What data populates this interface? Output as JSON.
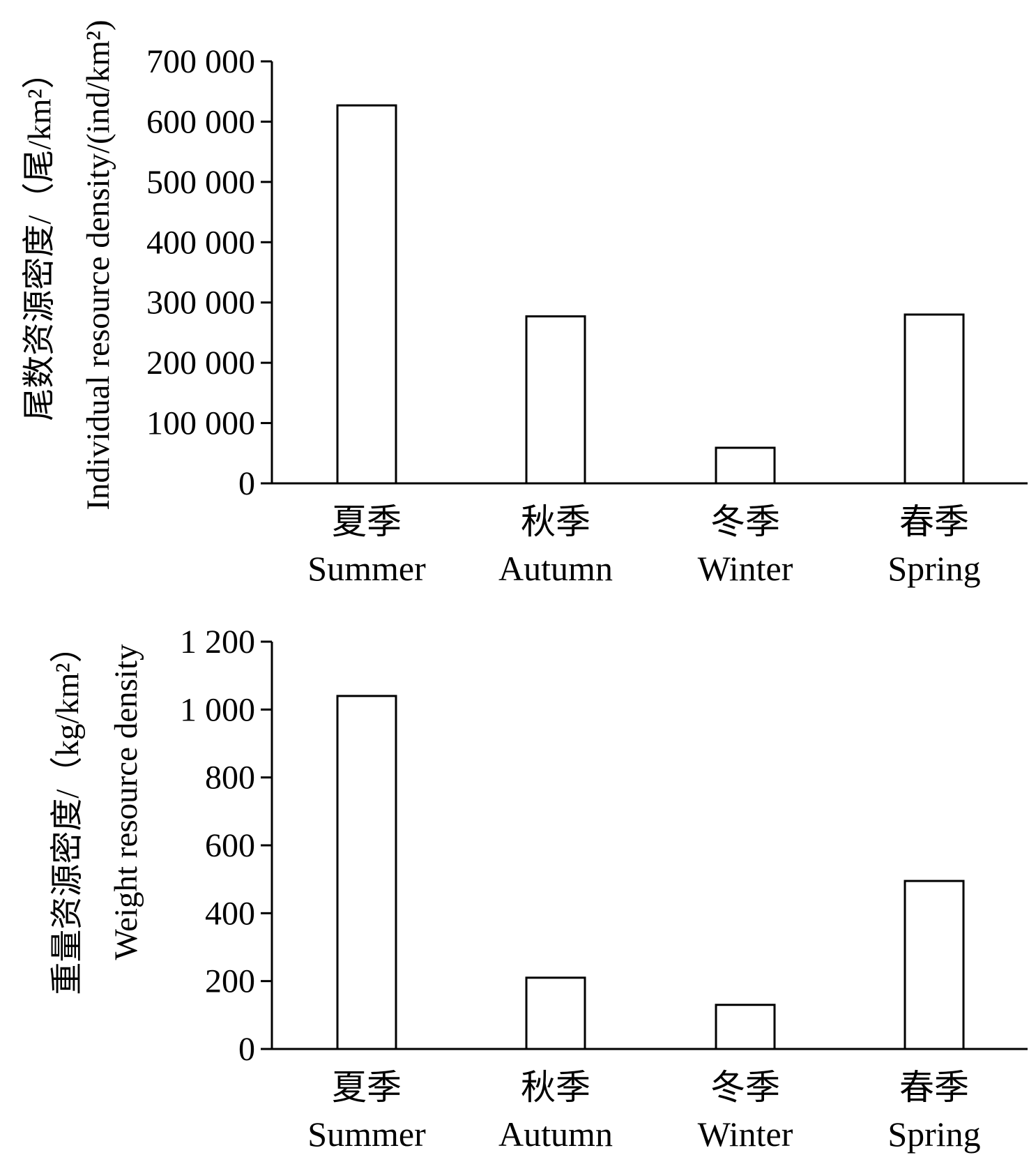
{
  "chart_data": [
    {
      "type": "bar",
      "categories": [
        {
          "cn": "夏季",
          "en": "Summer"
        },
        {
          "cn": "秋季",
          "en": "Autumn"
        },
        {
          "cn": "冬季",
          "en": "Winter"
        },
        {
          "cn": "春季",
          "en": "Spring"
        }
      ],
      "values": [
        627000,
        277000,
        59000,
        280000
      ],
      "ylabel_cn": "尾数资源密度/（尾/km²）",
      "ylabel_en": "Individual resource density/(ind/km²)",
      "ylim": [
        0,
        700000
      ],
      "yticks": [
        {
          "value": 0,
          "label": "0"
        },
        {
          "value": 100000,
          "label": "100 000"
        },
        {
          "value": 200000,
          "label": "200 000"
        },
        {
          "value": 300000,
          "label": "300 000"
        },
        {
          "value": 400000,
          "label": "400 000"
        },
        {
          "value": 500000,
          "label": "500 000"
        },
        {
          "value": 600000,
          "label": "600 000"
        },
        {
          "value": 700000,
          "label": "700 000"
        }
      ],
      "grid": false,
      "bar_fill": "#ffffff",
      "bar_stroke": "#000000"
    },
    {
      "type": "bar",
      "categories": [
        {
          "cn": "夏季",
          "en": "Summer"
        },
        {
          "cn": "秋季",
          "en": "Autumn"
        },
        {
          "cn": "冬季",
          "en": "Winter"
        },
        {
          "cn": "春季",
          "en": "Spring"
        }
      ],
      "values": [
        1040,
        210,
        130,
        495
      ],
      "ylabel_cn": "重量资源密度/（kg/km²）",
      "ylabel_en": "Weight resource density",
      "ylim": [
        0,
        1200
      ],
      "yticks": [
        {
          "value": 0,
          "label": "0"
        },
        {
          "value": 200,
          "label": "200"
        },
        {
          "value": 400,
          "label": "400"
        },
        {
          "value": 600,
          "label": "600"
        },
        {
          "value": 800,
          "label": "800"
        },
        {
          "value": 1000,
          "label": "1 000"
        },
        {
          "value": 1200,
          "label": "1 200"
        }
      ],
      "grid": false,
      "bar_fill": "#ffffff",
      "bar_stroke": "#000000"
    }
  ]
}
